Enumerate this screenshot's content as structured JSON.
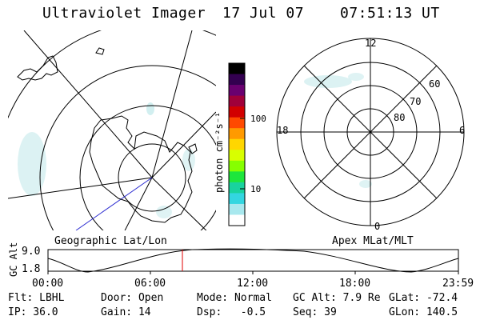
{
  "header": {
    "title": "Ultraviolet Imager",
    "date": "17 Jul 07",
    "time": "07:51:13 UT"
  },
  "left_panel": {
    "label": "Geographic Lat/Lon"
  },
  "right_panel": {
    "label": "Apex MLat/MLT",
    "mlt_labels": {
      "top": "12",
      "bottom": "0",
      "left": "18",
      "right": "6"
    },
    "mlat_labels": [
      "60",
      "70",
      "80"
    ]
  },
  "colorbar": {
    "unit": "photon cm⁻²s⁻¹",
    "ticks": [
      "100",
      "10"
    ],
    "colors": [
      "#000000",
      "#330050",
      "#6a0070",
      "#a0003a",
      "#d20000",
      "#ff4a00",
      "#ff9a00",
      "#ffd600",
      "#d8ff00",
      "#86ff00",
      "#1ee63c",
      "#19d39e",
      "#33d6e0",
      "#a8e8ee",
      "#ffffff"
    ]
  },
  "altitude_plot": {
    "ylabel": "GC Alt",
    "y_ticks": [
      "9.0",
      "1.8"
    ],
    "x_ticks": [
      "00:00",
      "06:00",
      "12:00",
      "18:00",
      "23:59"
    ],
    "marker_time": "07:51"
  },
  "info": {
    "flt": "Flt: LBHL",
    "door": "Door: Open",
    "mode": "Mode: Normal",
    "gc_alt": "GC Alt: 7.9 Re",
    "glat": "GLat: -72.4",
    "ip": "IP: 36.0",
    "gain": "Gain: 14",
    "dsp": "Dsp:   -0.5",
    "seq": "Seq: 39",
    "glon": "GLon: 140.5"
  }
}
